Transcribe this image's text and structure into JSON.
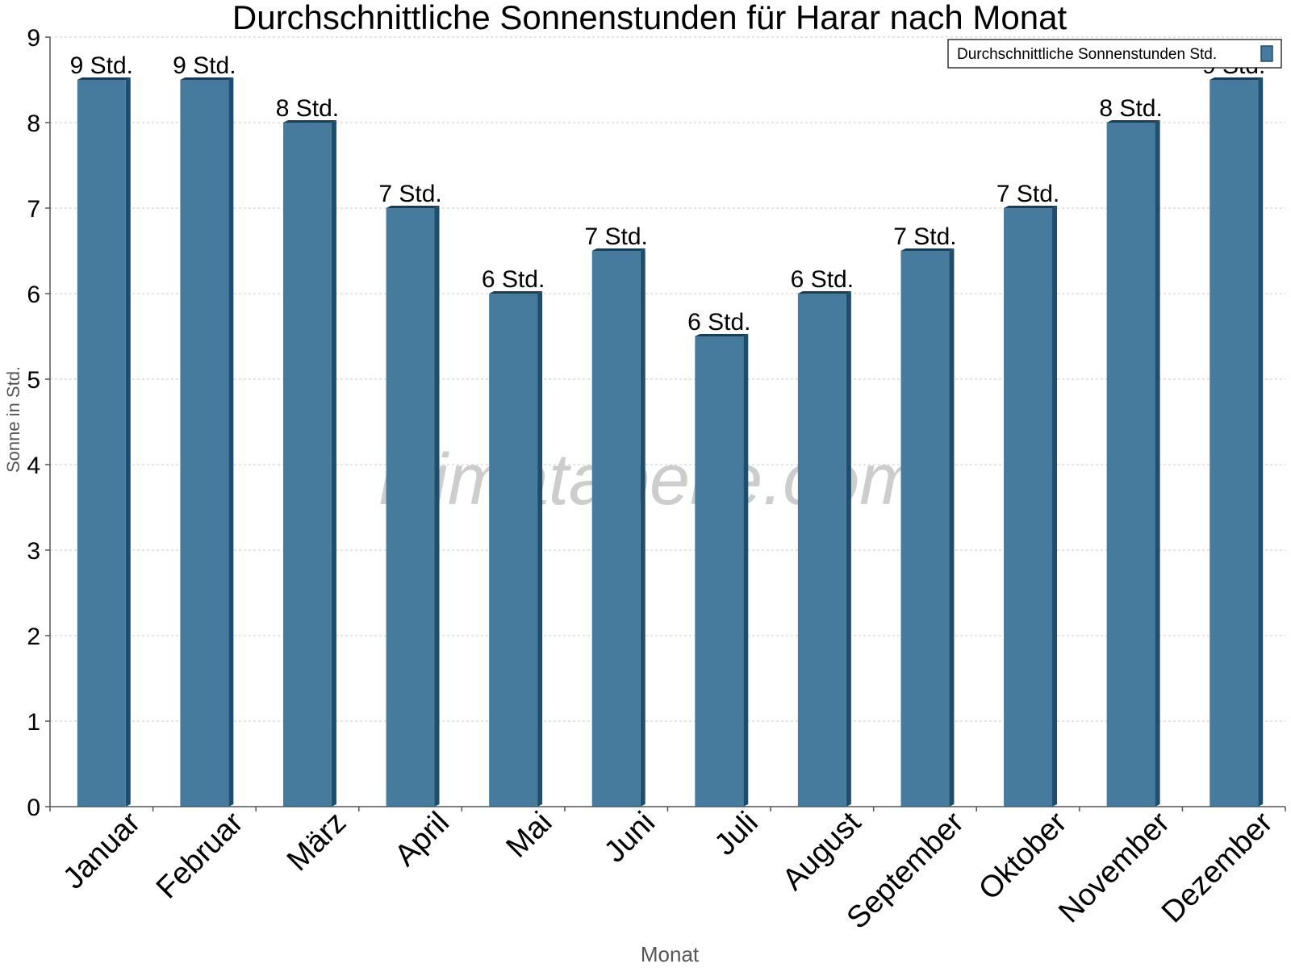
{
  "chart_data": {
    "type": "bar",
    "title": "Durchschnittliche Sonnenstunden für Harar nach Monat",
    "xlabel": "Monat",
    "ylabel": "Sonne in Std.",
    "ylim": [
      0,
      9
    ],
    "yticks": [
      "0",
      "1",
      "2",
      "3",
      "4",
      "5",
      "6",
      "7",
      "8",
      "9"
    ],
    "grid": true,
    "legend_position": "top-right",
    "categories": [
      "Januar",
      "Februar",
      "März",
      "April",
      "Mai",
      "Juni",
      "Juli",
      "August",
      "September",
      "Oktober",
      "November",
      "Dezember"
    ],
    "series": [
      {
        "name": "Durchschnittliche Sonnenstunden Std.",
        "values": [
          8.5,
          8.5,
          8,
          7,
          6,
          6.5,
          5.5,
          6,
          6.5,
          7,
          8,
          8.5
        ],
        "labels": [
          "9 Std.",
          "9 Std.",
          "8 Std.",
          "7 Std.",
          "6 Std.",
          "7 Std.",
          "6 Std.",
          "6 Std.",
          "7 Std.",
          "7 Std.",
          "8 Std.",
          "9 Std."
        ]
      }
    ],
    "colors": {
      "bar": "#477b9e",
      "bar_side": "#1e4e6e",
      "bar_top": "#163f5e",
      "grid": "#c8c8c8",
      "axis": "#555555"
    }
  },
  "watermark": "klimatabelle.com"
}
